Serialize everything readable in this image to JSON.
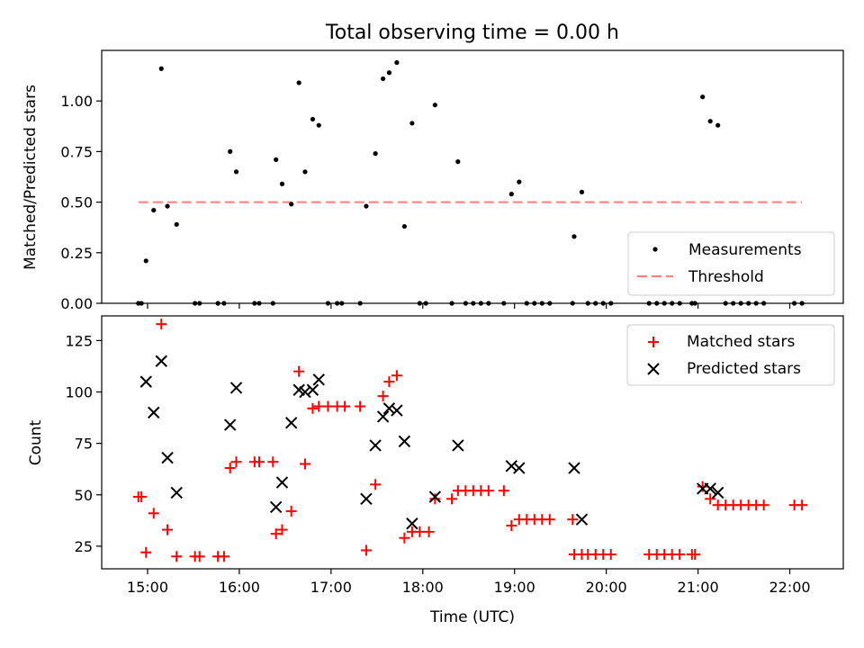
{
  "chart_data": [
    {
      "type": "scatter",
      "title": "Total observing time = 0.00 h",
      "ylabel": "Matched/Predicted stars",
      "xlim": [
        "14:30",
        "22:35"
      ],
      "ylim": [
        0,
        1.25
      ],
      "yticks": [
        "0.00",
        "0.25",
        "0.50",
        "0.75",
        "1.00"
      ],
      "threshold": 0.5,
      "legend_position": "lower-right",
      "series": [
        {
          "name": "Measurements",
          "marker": "dot",
          "color": "#000000",
          "points": [
            [
              "14:54",
              0
            ],
            [
              "14:56",
              0
            ],
            [
              "14:59",
              0.21
            ],
            [
              "15:04",
              0.46
            ],
            [
              "15:09",
              1.16
            ],
            [
              "15:13",
              0.48
            ],
            [
              "15:19",
              0.39
            ],
            [
              "15:31",
              0
            ],
            [
              "15:34",
              0
            ],
            [
              "15:46",
              0
            ],
            [
              "15:50",
              0
            ],
            [
              "15:54",
              0.75
            ],
            [
              "15:58",
              0.65
            ],
            [
              "16:10",
              0
            ],
            [
              "16:13",
              0
            ],
            [
              "16:22",
              0
            ],
            [
              "16:24",
              0.71
            ],
            [
              "16:28",
              0.59
            ],
            [
              "16:34",
              0.49
            ],
            [
              "16:39",
              1.09
            ],
            [
              "16:43",
              0.65
            ],
            [
              "16:48",
              0.91
            ],
            [
              "16:52",
              0.88
            ],
            [
              "16:58",
              0
            ],
            [
              "17:04",
              0
            ],
            [
              "17:07",
              0
            ],
            [
              "17:19",
              0
            ],
            [
              "17:23",
              0.48
            ],
            [
              "17:29",
              0.74
            ],
            [
              "17:34",
              1.11
            ],
            [
              "17:38",
              1.14
            ],
            [
              "17:43",
              1.19
            ],
            [
              "17:48",
              0.38
            ],
            [
              "17:53",
              0.89
            ],
            [
              "17:58",
              0
            ],
            [
              "18:02",
              0
            ],
            [
              "18:08",
              0.98
            ],
            [
              "18:19",
              0
            ],
            [
              "18:23",
              0.7
            ],
            [
              "18:28",
              0
            ],
            [
              "18:33",
              0
            ],
            [
              "18:38",
              0
            ],
            [
              "18:43",
              0
            ],
            [
              "18:53",
              0
            ],
            [
              "18:58",
              0.54
            ],
            [
              "19:03",
              0.6
            ],
            [
              "19:08",
              0
            ],
            [
              "19:13",
              0
            ],
            [
              "19:18",
              0
            ],
            [
              "19:23",
              0
            ],
            [
              "19:38",
              0
            ],
            [
              "19:39",
              0.33
            ],
            [
              "19:44",
              0.55
            ],
            [
              "19:48",
              0
            ],
            [
              "19:53",
              0
            ],
            [
              "19:58",
              0
            ],
            [
              "20:03",
              0
            ],
            [
              "20:28",
              0
            ],
            [
              "20:33",
              0
            ],
            [
              "20:38",
              0
            ],
            [
              "20:43",
              0
            ],
            [
              "20:48",
              0
            ],
            [
              "20:56",
              0
            ],
            [
              "20:58",
              0
            ],
            [
              "21:03",
              1.02
            ],
            [
              "21:08",
              0.9
            ],
            [
              "21:13",
              0.88
            ],
            [
              "21:18",
              0
            ],
            [
              "21:23",
              0
            ],
            [
              "21:28",
              0
            ],
            [
              "21:33",
              0
            ],
            [
              "21:38",
              0
            ],
            [
              "21:43",
              0
            ],
            [
              "22:03",
              0
            ],
            [
              "22:08",
              0
            ]
          ]
        },
        {
          "name": "Threshold",
          "marker": "dashed-line",
          "color": "#ff7f7f"
        }
      ]
    },
    {
      "type": "scatter",
      "xlabel": "Time (UTC)",
      "ylabel": "Count",
      "xlim": [
        "14:30",
        "22:35"
      ],
      "ylim": [
        14,
        137
      ],
      "yticks": [
        "25",
        "50",
        "75",
        "100",
        "125"
      ],
      "xticks": [
        "15:00",
        "16:00",
        "17:00",
        "18:00",
        "19:00",
        "20:00",
        "21:00",
        "22:00"
      ],
      "legend_position": "upper-right",
      "series": [
        {
          "name": "Matched stars",
          "marker": "plus",
          "color": "#ff0000",
          "points": [
            [
              "14:54",
              49
            ],
            [
              "14:56",
              49
            ],
            [
              "14:59",
              22
            ],
            [
              "15:04",
              41
            ],
            [
              "15:09",
              133
            ],
            [
              "15:13",
              33
            ],
            [
              "15:19",
              20
            ],
            [
              "15:31",
              20
            ],
            [
              "15:34",
              20
            ],
            [
              "15:46",
              20
            ],
            [
              "15:50",
              20
            ],
            [
              "15:54",
              63
            ],
            [
              "15:58",
              66
            ],
            [
              "16:10",
              66
            ],
            [
              "16:13",
              66
            ],
            [
              "16:22",
              66
            ],
            [
              "16:24",
              31
            ],
            [
              "16:28",
              33
            ],
            [
              "16:34",
              42
            ],
            [
              "16:39",
              110
            ],
            [
              "16:43",
              65
            ],
            [
              "16:48",
              92
            ],
            [
              "16:52",
              93
            ],
            [
              "16:58",
              93
            ],
            [
              "17:04",
              93
            ],
            [
              "17:09",
              93
            ],
            [
              "17:19",
              93
            ],
            [
              "17:23",
              23
            ],
            [
              "17:29",
              55
            ],
            [
              "17:34",
              98
            ],
            [
              "17:38",
              105
            ],
            [
              "17:43",
              108
            ],
            [
              "17:48",
              29
            ],
            [
              "17:53",
              32
            ],
            [
              "17:58",
              32
            ],
            [
              "18:04",
              32
            ],
            [
              "18:08",
              48
            ],
            [
              "18:19",
              48
            ],
            [
              "18:23",
              52
            ],
            [
              "18:28",
              52
            ],
            [
              "18:33",
              52
            ],
            [
              "18:38",
              52
            ],
            [
              "18:43",
              52
            ],
            [
              "18:53",
              52
            ],
            [
              "18:58",
              35
            ],
            [
              "19:03",
              38
            ],
            [
              "19:08",
              38
            ],
            [
              "19:13",
              38
            ],
            [
              "19:18",
              38
            ],
            [
              "19:23",
              38
            ],
            [
              "19:38",
              38
            ],
            [
              "19:39",
              21
            ],
            [
              "19:44",
              21
            ],
            [
              "19:48",
              21
            ],
            [
              "19:53",
              21
            ],
            [
              "19:58",
              21
            ],
            [
              "20:03",
              21
            ],
            [
              "20:28",
              21
            ],
            [
              "20:33",
              21
            ],
            [
              "20:38",
              21
            ],
            [
              "20:43",
              21
            ],
            [
              "20:48",
              21
            ],
            [
              "20:56",
              21
            ],
            [
              "20:58",
              21
            ],
            [
              "21:03",
              54
            ],
            [
              "21:08",
              48
            ],
            [
              "21:13",
              45
            ],
            [
              "21:18",
              45
            ],
            [
              "21:23",
              45
            ],
            [
              "21:28",
              45
            ],
            [
              "21:33",
              45
            ],
            [
              "21:38",
              45
            ],
            [
              "21:43",
              45
            ],
            [
              "22:03",
              45
            ],
            [
              "22:08",
              45
            ]
          ]
        },
        {
          "name": "Predicted stars",
          "marker": "x",
          "color": "#000000",
          "points": [
            [
              "14:59",
              105
            ],
            [
              "15:04",
              90
            ],
            [
              "15:09",
              115
            ],
            [
              "15:13",
              68
            ],
            [
              "15:19",
              51
            ],
            [
              "15:54",
              84
            ],
            [
              "15:58",
              102
            ],
            [
              "16:24",
              44
            ],
            [
              "16:28",
              56
            ],
            [
              "16:34",
              85
            ],
            [
              "16:39",
              101
            ],
            [
              "16:43",
              100
            ],
            [
              "16:48",
              101
            ],
            [
              "16:52",
              106
            ],
            [
              "17:23",
              48
            ],
            [
              "17:29",
              74
            ],
            [
              "17:34",
              88
            ],
            [
              "17:38",
              92
            ],
            [
              "17:43",
              91
            ],
            [
              "17:48",
              76
            ],
            [
              "17:53",
              36
            ],
            [
              "18:08",
              49
            ],
            [
              "18:23",
              74
            ],
            [
              "18:58",
              64
            ],
            [
              "19:03",
              63
            ],
            [
              "19:39",
              63
            ],
            [
              "19:44",
              38
            ],
            [
              "21:03",
              53
            ],
            [
              "21:08",
              53
            ],
            [
              "21:13",
              51
            ]
          ]
        }
      ]
    }
  ]
}
